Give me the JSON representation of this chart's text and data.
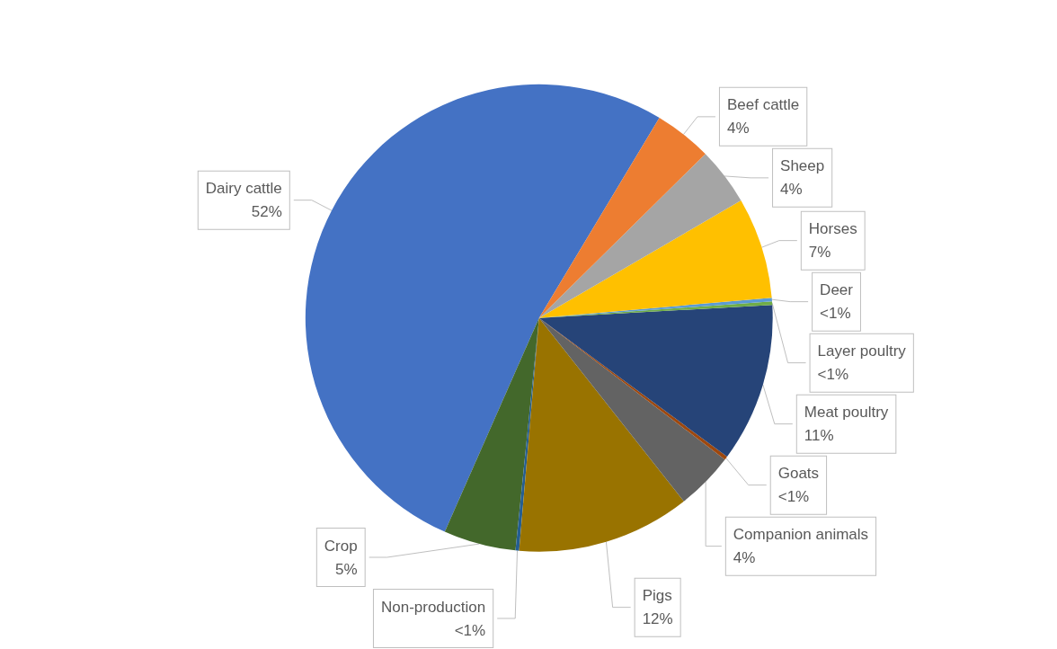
{
  "chart_data": {
    "type": "pie",
    "categories": [
      "Beef cattle",
      "Sheep",
      "Horses",
      "Deer",
      "Layer poultry",
      "Meat poultry",
      "Goats",
      "Companion animals",
      "Pigs",
      "Non-production",
      "Crop",
      "Dairy cattle"
    ],
    "values": [
      4,
      4,
      7,
      0.25,
      0.25,
      11,
      0.25,
      4,
      12,
      0.25,
      5,
      52
    ],
    "value_labels": [
      "4%",
      "4%",
      "7%",
      "<1%",
      "<1%",
      "11%",
      "<1%",
      "4%",
      "12%",
      "<1%",
      "5%",
      "52%"
    ],
    "colors": [
      "#ed7d31",
      "#a5a5a5",
      "#ffc000",
      "#5b9bd5",
      "#70ad47",
      "#264478",
      "#9e480e",
      "#636363",
      "#997300",
      "#255e91",
      "#43682b",
      "#4472c4"
    ],
    "legend": false
  }
}
